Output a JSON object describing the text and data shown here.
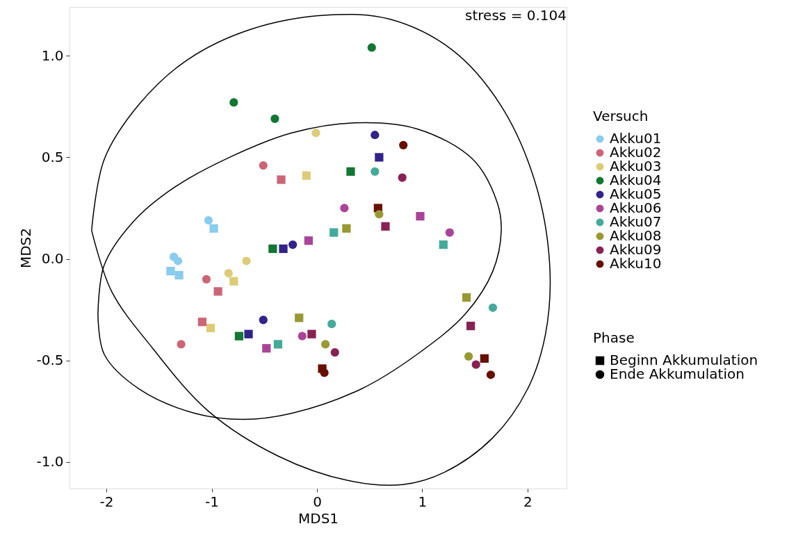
{
  "chart_data": {
    "type": "scatter",
    "xlabel": "MDS1",
    "ylabel": "MDS2",
    "xlim": [
      -2.35,
      2.37
    ],
    "ylim": [
      -1.13,
      1.24
    ],
    "xticks": [
      -2,
      -1,
      0,
      1,
      2
    ],
    "yticks": [
      {
        "value": -1,
        "label": "-1.0"
      },
      {
        "value": -0.5,
        "label": "-0.5"
      },
      {
        "value": 0,
        "label": "0.0"
      },
      {
        "value": 0.5,
        "label": "0.5"
      },
      {
        "value": 1,
        "label": "1.0"
      }
    ],
    "grid": false,
    "legend": "right",
    "legend_title": [
      "Versuch",
      "Phase"
    ],
    "annotations": [
      "stress = 0.104"
    ],
    "series": [
      {
        "name": "Akku01",
        "color": "#88ccee",
        "marker": "circle",
        "x": [
          -1.03,
          -1.36,
          -1.32
        ],
        "values": [
          0.19,
          0.01,
          -0.01
        ]
      },
      {
        "name": "Akku02",
        "color": "#cc6677",
        "marker": "circle",
        "x": [
          -0.51,
          -1.05,
          -1.29
        ],
        "values": [
          0.46,
          -0.1,
          -0.42
        ]
      },
      {
        "name": "Akku03",
        "color": "#ddcc77",
        "marker": "circle",
        "x": [
          -0.01,
          -0.67,
          -0.84
        ],
        "values": [
          0.62,
          -0.01,
          -0.07
        ]
      },
      {
        "name": "Akku04",
        "color": "#117733",
        "marker": "circle",
        "x": [
          0.52,
          -0.79,
          -0.4
        ],
        "values": [
          1.04,
          0.77,
          0.69
        ]
      },
      {
        "name": "Akku05",
        "color": "#332288",
        "marker": "circle",
        "x": [
          0.55,
          -0.23,
          -0.51
        ],
        "values": [
          0.61,
          0.07,
          -0.3
        ]
      },
      {
        "name": "Akku06",
        "color": "#aa4499",
        "marker": "circle",
        "x": [
          0.26,
          1.26,
          -0.14
        ],
        "values": [
          0.25,
          0.13,
          -0.38
        ]
      },
      {
        "name": "Akku07",
        "color": "#44aa99",
        "marker": "circle",
        "x": [
          0.55,
          1.67,
          0.14
        ],
        "values": [
          0.43,
          -0.24,
          -0.32
        ]
      },
      {
        "name": "Akku08",
        "color": "#999933",
        "marker": "circle",
        "x": [
          0.59,
          0.08,
          1.44
        ],
        "values": [
          0.22,
          -0.42,
          -0.48
        ]
      },
      {
        "name": "Akku09",
        "color": "#882255",
        "marker": "circle",
        "x": [
          0.81,
          0.17,
          1.51
        ],
        "values": [
          0.4,
          -0.46,
          -0.52
        ]
      },
      {
        "name": "Akku10",
        "color": "#661100",
        "marker": "circle",
        "x": [
          0.82,
          0.07,
          1.65
        ],
        "values": [
          0.56,
          -0.56,
          -0.57
        ]
      },
      {
        "color": "#88ccee",
        "marker": "square",
        "x": [
          -0.98,
          -1.39,
          -1.31
        ],
        "values": [
          0.15,
          -0.06,
          -0.08
        ]
      },
      {
        "color": "#cc6677",
        "marker": "square",
        "x": [
          -0.34,
          -0.94,
          -1.09
        ],
        "values": [
          0.39,
          -0.16,
          -0.31
        ]
      },
      {
        "color": "#ddcc77",
        "marker": "square",
        "x": [
          -0.1,
          -0.79,
          -1.01
        ],
        "values": [
          0.41,
          -0.11,
          -0.34
        ]
      },
      {
        "color": "#117733",
        "marker": "square",
        "x": [
          0.32,
          -0.42,
          -0.74
        ],
        "values": [
          0.43,
          0.05,
          -0.38
        ]
      },
      {
        "color": "#332288",
        "marker": "square",
        "x": [
          0.59,
          -0.32,
          -0.65
        ],
        "values": [
          0.5,
          0.05,
          -0.37
        ]
      },
      {
        "color": "#aa4499",
        "marker": "square",
        "x": [
          0.98,
          -0.08,
          -0.48
        ],
        "values": [
          0.21,
          0.09,
          -0.44
        ]
      },
      {
        "color": "#44aa99",
        "marker": "square",
        "x": [
          0.16,
          1.2,
          -0.37
        ],
        "values": [
          0.13,
          0.07,
          -0.42
        ]
      },
      {
        "color": "#999933",
        "marker": "square",
        "x": [
          0.28,
          -0.17,
          1.42
        ],
        "values": [
          0.15,
          -0.29,
          -0.19
        ]
      },
      {
        "color": "#882255",
        "marker": "square",
        "x": [
          0.65,
          -0.05,
          1.46
        ],
        "values": [
          0.16,
          -0.37,
          -0.33
        ]
      },
      {
        "color": "#661100",
        "marker": "square",
        "x": [
          0.58,
          0.05,
          1.59
        ],
        "values": [
          0.25,
          -0.54,
          -0.49
        ]
      },
      {
        "name": "Beginn Akkumulation",
        "color": "#000000",
        "marker": "square"
      },
      {
        "name": "Ende Akkumulation",
        "color": "#000000",
        "marker": "circle"
      }
    ]
  }
}
